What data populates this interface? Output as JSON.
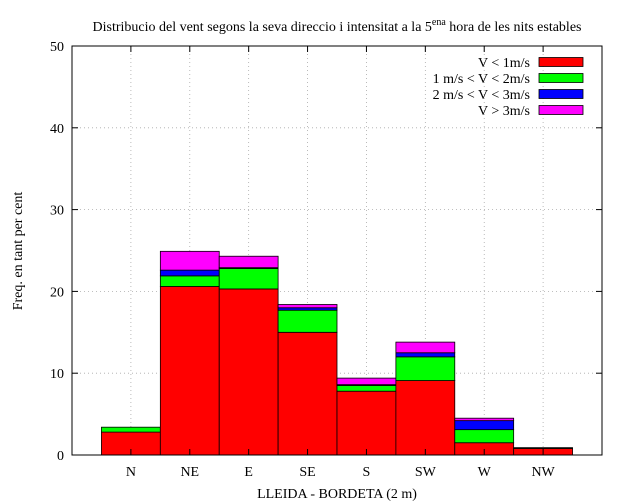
{
  "chart_data": {
    "type": "bar",
    "title_main": "Distribucio del vent segons la seva direccio i intensitat a la 5",
    "title_sup": "ena",
    "title_end": " hora de les nits estables",
    "xlabel": "LLEIDA - BORDETA (2 m)",
    "ylabel": "Freq. en tant per cent",
    "ylim": [
      0,
      50
    ],
    "yticks": [
      "0",
      "10",
      "20",
      "30",
      "40",
      "50"
    ],
    "grid": true,
    "legend_position": "top-right",
    "stacked": true,
    "categories": [
      "N",
      "NE",
      "E",
      "SE",
      "S",
      "SW",
      "W",
      "NW"
    ],
    "series": [
      {
        "name": "V < 1m/s",
        "color": "#ff0000",
        "values": [
          2.8,
          20.6,
          20.3,
          15.0,
          7.8,
          9.1,
          1.5,
          0.8
        ]
      },
      {
        "name": "1 m/s < V < 2m/s",
        "color": "#00ff00",
        "values": [
          0.6,
          1.3,
          2.5,
          2.7,
          0.7,
          2.9,
          1.6,
          0.1
        ]
      },
      {
        "name": "2 m/s < V < 3m/s",
        "color": "#0000ff",
        "values": [
          0.0,
          0.7,
          0.1,
          0.3,
          0.1,
          0.5,
          1.1,
          0.0
        ]
      },
      {
        "name": "V > 3m/s",
        "color": "#ff00ff",
        "values": [
          0.0,
          2.3,
          1.4,
          0.4,
          0.8,
          1.3,
          0.3,
          0.0
        ]
      }
    ]
  }
}
